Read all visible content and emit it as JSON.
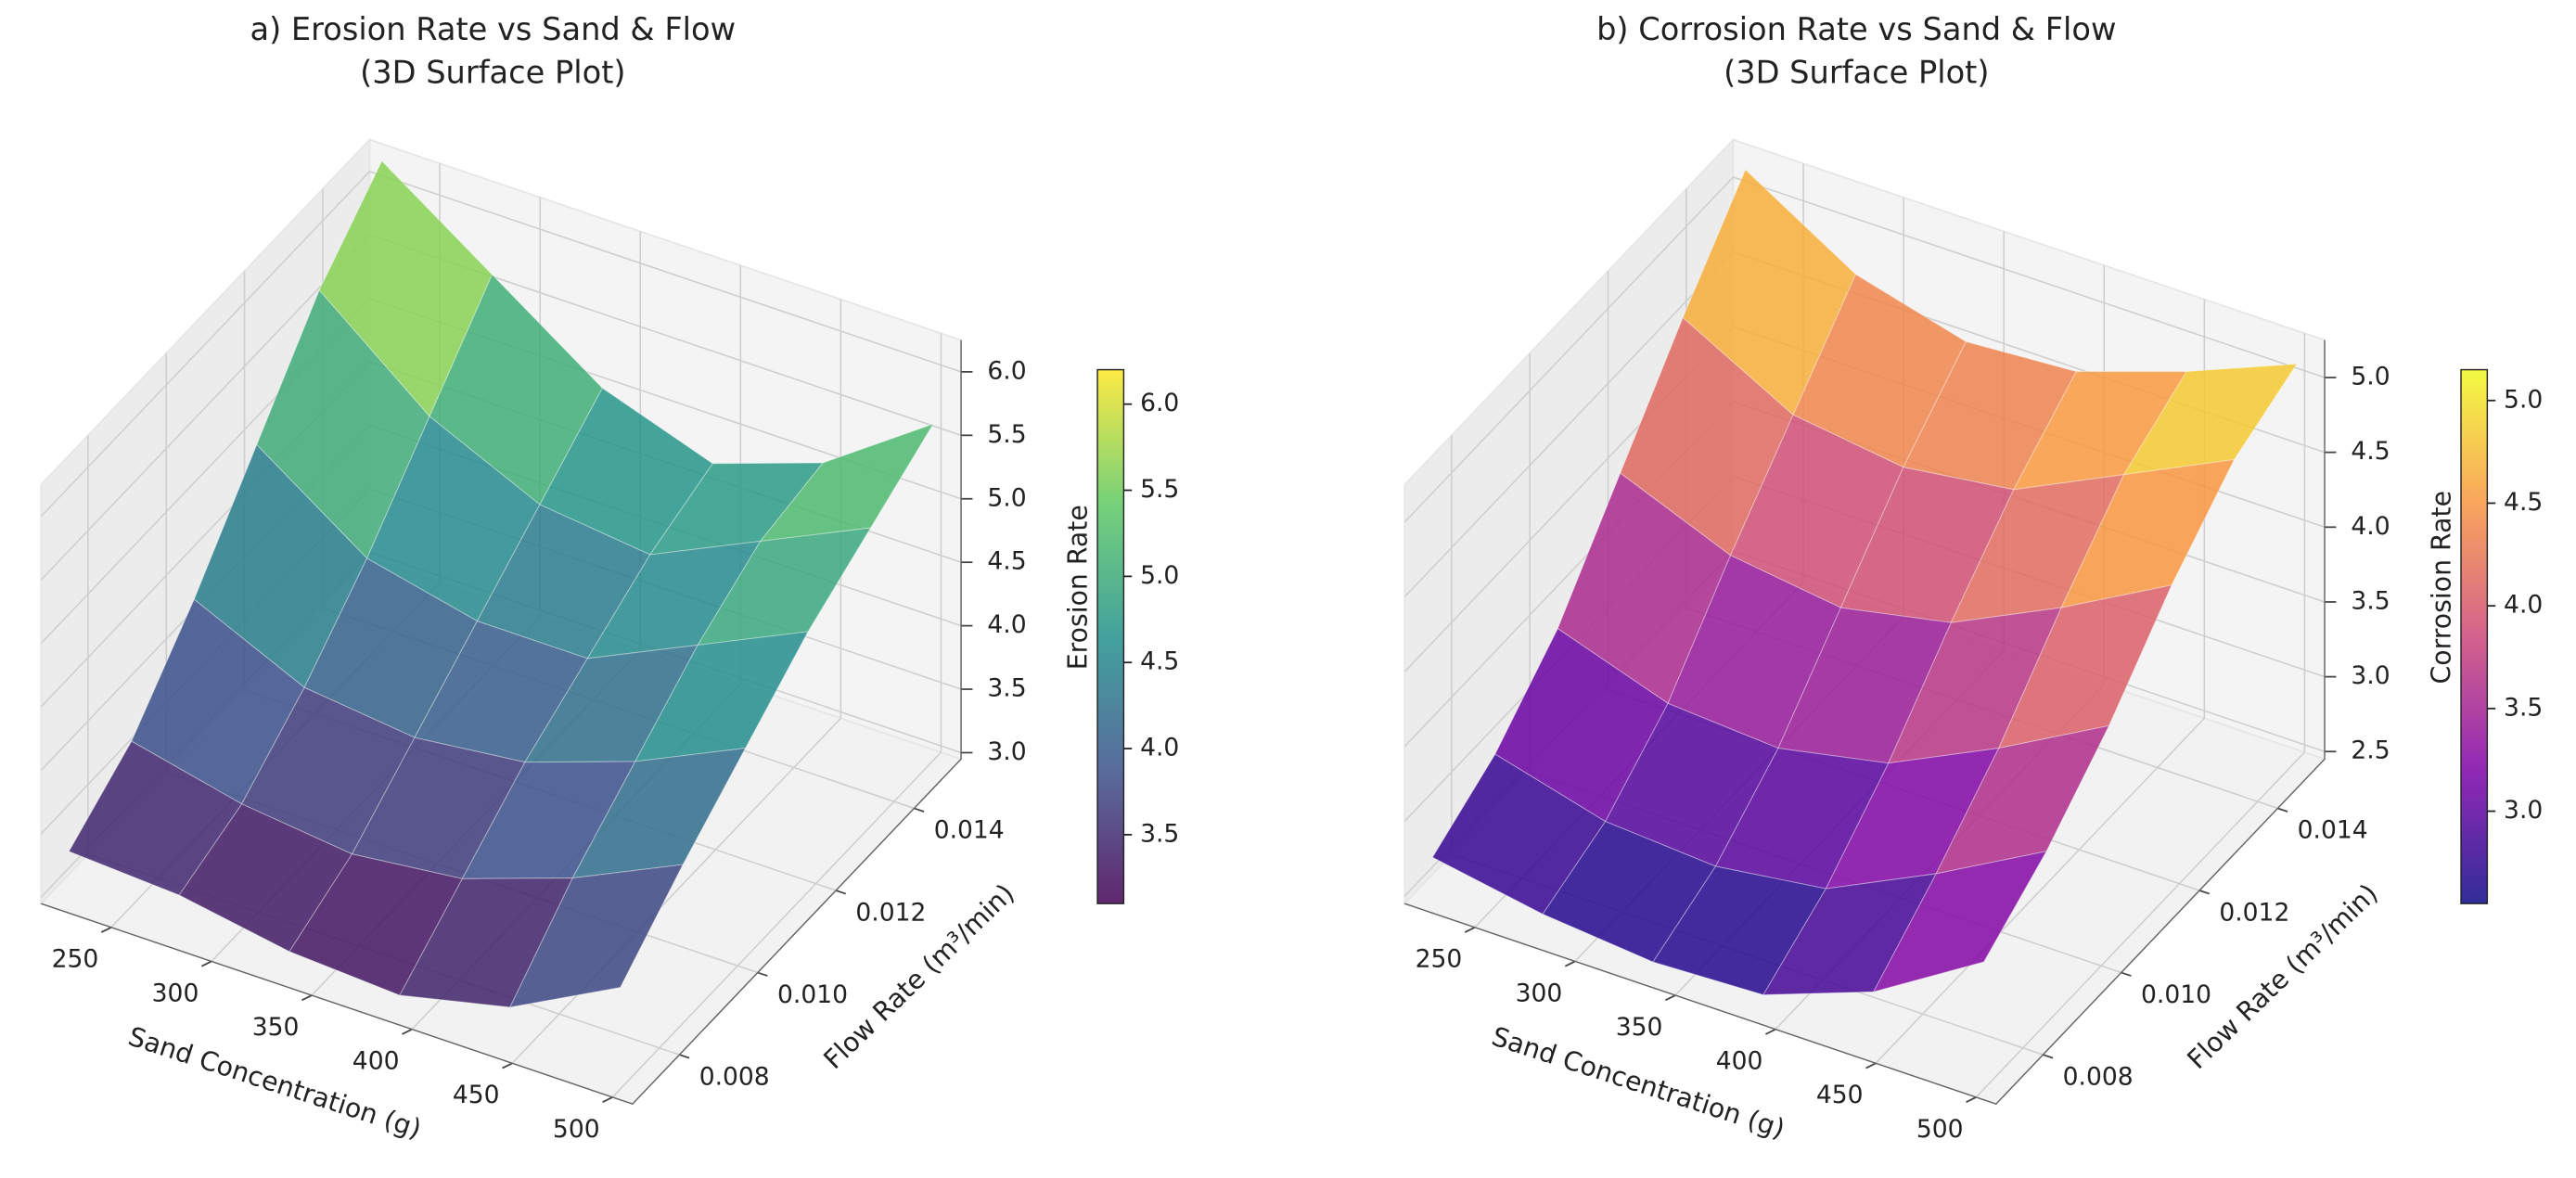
{
  "chart_data": [
    {
      "type": "surface",
      "title": [
        "a) Erosion Rate vs Sand & Flow",
        "(3D Surface Plot)"
      ],
      "xlabel": "Sand Concentration (g)",
      "ylabel": "Flow Rate (m³/min)",
      "colorbar_label": "Erosion Rate",
      "x": [
        225,
        280,
        335,
        390,
        445,
        500
      ],
      "y": [
        0.007,
        0.0086,
        0.0102,
        0.0118,
        0.0134,
        0.015
      ],
      "z": [
        [
          3.35,
          3.3,
          3.15,
          3.1,
          3.3,
          3.75
        ],
        [
          3.7,
          3.5,
          3.4,
          3.5,
          3.8,
          4.2
        ],
        [
          4.3,
          3.9,
          3.8,
          3.9,
          4.2,
          4.6
        ],
        [
          5.0,
          4.4,
          4.2,
          4.2,
          4.6,
          5.0
        ],
        [
          5.7,
          5.0,
          4.6,
          4.5,
          4.9,
          5.3
        ],
        [
          6.2,
          5.6,
          5.0,
          4.7,
          5.0,
          5.6
        ]
      ],
      "xlim": [
        215,
        510
      ],
      "ylim": [
        0.0068,
        0.0152
      ],
      "zlim": [
        2.95,
        6.25
      ],
      "xticks": [
        250,
        300,
        350,
        400,
        450,
        500
      ],
      "yticks": [
        0.008,
        {
          "value": 0.01,
          "label": "0.010"
        },
        0.012,
        0.014
      ],
      "zticks": [
        {
          "value": 3,
          "label": "3.0"
        },
        3.5,
        {
          "value": 4,
          "label": "4.0"
        },
        4.5,
        {
          "value": 5,
          "label": "5.0"
        },
        5.5,
        {
          "value": 6,
          "label": "6.0"
        }
      ],
      "clim": [
        3.1,
        6.2
      ],
      "cticks": [
        3.5,
        {
          "value": 4,
          "label": "4.0"
        },
        4.5,
        {
          "value": 5,
          "label": "5.0"
        },
        5.5,
        {
          "value": 6,
          "label": "6.0"
        }
      ],
      "colors": [
        "#440154",
        "#3b528b",
        "#21918c",
        "#5ec962",
        "#fde725"
      ],
      "grid": true
    },
    {
      "type": "surface",
      "title": [
        "b) Corrosion Rate vs Sand & Flow",
        "(3D Surface Plot)"
      ],
      "xlabel": "Sand Concentration (g)",
      "ylabel": "Flow Rate (m³/min)",
      "colorbar_label": "Corrosion Rate",
      "x": [
        225,
        280,
        335,
        390,
        445,
        500
      ],
      "y": [
        0.007,
        0.0086,
        0.0102,
        0.0118,
        0.0134,
        0.015
      ],
      "z": [
        [
          2.75,
          2.62,
          2.55,
          2.58,
          2.85,
          3.3
        ],
        [
          3.0,
          2.8,
          2.75,
          2.85,
          3.2,
          3.6
        ],
        [
          3.4,
          3.15,
          3.1,
          3.25,
          3.6,
          4.0
        ],
        [
          4.0,
          3.7,
          3.6,
          3.75,
          4.1,
          4.5
        ],
        [
          4.6,
          4.2,
          4.1,
          4.2,
          4.55,
          4.9
        ],
        [
          5.15,
          4.7,
          4.5,
          4.55,
          4.8,
          5.1
        ]
      ],
      "xlim": [
        215,
        510
      ],
      "ylim": [
        0.0068,
        0.0152
      ],
      "zlim": [
        2.45,
        5.25
      ],
      "xticks": [
        250,
        300,
        350,
        400,
        450,
        500
      ],
      "yticks": [
        0.008,
        {
          "value": 0.01,
          "label": "0.010"
        },
        0.012,
        0.014
      ],
      "zticks": [
        2.5,
        {
          "value": 3,
          "label": "3.0"
        },
        3.5,
        {
          "value": 4,
          "label": "4.0"
        },
        4.5,
        {
          "value": 5,
          "label": "5.0"
        }
      ],
      "clim": [
        2.55,
        5.15
      ],
      "cticks": [
        {
          "value": 3,
          "label": "3.0"
        },
        3.5,
        {
          "value": 4,
          "label": "4.0"
        },
        4.5,
        {
          "value": 5,
          "label": "5.0"
        }
      ],
      "colors": [
        "#0d0887",
        "#7e03a8",
        "#cc4778",
        "#f89540",
        "#f0f921"
      ],
      "grid": true
    }
  ]
}
